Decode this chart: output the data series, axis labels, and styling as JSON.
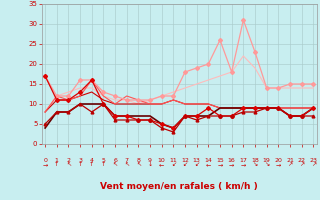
{
  "x": [
    0,
    1,
    2,
    3,
    4,
    5,
    6,
    7,
    8,
    9,
    10,
    11,
    12,
    13,
    14,
    15,
    16,
    17,
    18,
    19,
    20,
    21,
    22,
    23
  ],
  "series": [
    {
      "y": [
        17,
        11,
        11,
        13,
        16,
        10,
        7,
        7,
        6,
        6,
        5,
        4,
        7,
        7,
        9,
        7,
        7,
        9,
        9,
        9,
        9,
        7,
        7,
        9
      ],
      "color": "#dd0000",
      "lw": 0.9,
      "marker": "D",
      "ms": 2.0,
      "zorder": 5
    },
    {
      "y": [
        5,
        8,
        8,
        10,
        8,
        10,
        6,
        6,
        6,
        6,
        4,
        3,
        7,
        6,
        7,
        7,
        7,
        8,
        8,
        9,
        9,
        7,
        7,
        7
      ],
      "color": "#bb0000",
      "lw": 0.9,
      "marker": "^",
      "ms": 2.0,
      "zorder": 5
    },
    {
      "y": [
        4,
        8,
        8,
        10,
        10,
        10,
        7,
        7,
        7,
        7,
        5,
        4,
        7,
        7,
        7,
        9,
        9,
        9,
        9,
        9,
        9,
        7,
        7,
        9
      ],
      "color": "#660000",
      "lw": 1.2,
      "marker": null,
      "ms": 0,
      "zorder": 4
    },
    {
      "y": [
        8,
        11,
        11,
        12,
        13,
        11,
        10,
        10,
        10,
        10,
        10,
        11,
        10,
        10,
        10,
        9,
        9,
        9,
        9,
        9,
        9,
        9,
        9,
        9
      ],
      "color": "#cc0000",
      "lw": 0.8,
      "marker": null,
      "ms": 0,
      "zorder": 3
    },
    {
      "y": [
        8,
        12,
        11,
        12,
        16,
        12,
        10,
        12,
        11,
        10,
        10,
        11,
        10,
        10,
        10,
        9,
        9,
        9,
        9,
        9,
        9,
        9,
        9,
        9
      ],
      "color": "#ff5555",
      "lw": 0.8,
      "marker": null,
      "ms": 0,
      "zorder": 3
    },
    {
      "y": [
        17,
        12,
        12,
        16,
        16,
        13,
        12,
        11,
        11,
        11,
        12,
        12,
        18,
        19,
        20,
        26,
        18,
        31,
        23,
        14,
        14,
        15,
        15,
        15
      ],
      "color": "#ff9999",
      "lw": 0.9,
      "marker": "D",
      "ms": 2.0,
      "zorder": 4
    },
    {
      "y": [
        8,
        12,
        13,
        14,
        14,
        12,
        11,
        11,
        10,
        11,
        12,
        13,
        14,
        15,
        16,
        17,
        18,
        22,
        19,
        14,
        14,
        14,
        14,
        14
      ],
      "color": "#ffbbbb",
      "lw": 0.8,
      "marker": null,
      "ms": 0,
      "zorder": 2
    }
  ],
  "xlabel": "Vent moyen/en rafales ( km/h )",
  "xlim": [
    0,
    23
  ],
  "ylim": [
    0,
    35
  ],
  "yticks": [
    0,
    5,
    10,
    15,
    20,
    25,
    30,
    35
  ],
  "xticks": [
    0,
    1,
    2,
    3,
    4,
    5,
    6,
    7,
    8,
    9,
    10,
    11,
    12,
    13,
    14,
    15,
    16,
    17,
    18,
    19,
    20,
    21,
    22,
    23
  ],
  "bg_color": "#c8eef0",
  "grid_color": "#aacccc",
  "tick_color": "#cc0000",
  "label_color": "#cc0000",
  "arrow_labels": [
    "→",
    "↑",
    "↖",
    "↑",
    "↑",
    "↑",
    "↖",
    "↖",
    "↖",
    "↓",
    "←",
    "↙",
    "↙",
    "↙",
    "←",
    "→",
    "→",
    "→",
    "↘",
    "↘",
    "→",
    "↗",
    "↗",
    "↗"
  ]
}
